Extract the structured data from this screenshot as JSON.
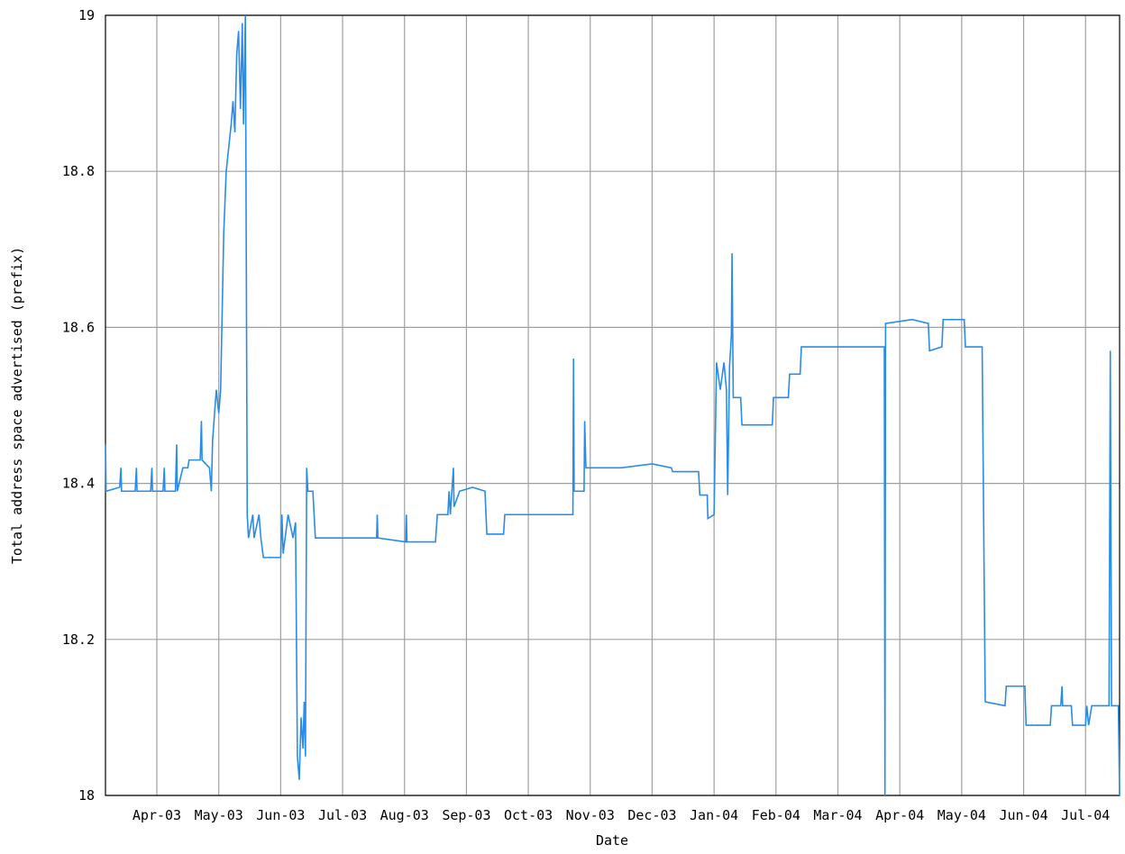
{
  "chart_data": {
    "type": "line",
    "x_label": "Date",
    "y_label": "Total address space advertised (prefix)",
    "color": "#2a8ce8",
    "grid": true,
    "xlim": [
      -0.83,
      15.55
    ],
    "xticks": [
      {
        "value": 0,
        "label": "Apr-03"
      },
      {
        "value": 1,
        "label": "May-03"
      },
      {
        "value": 2,
        "label": "Jun-03"
      },
      {
        "value": 3,
        "label": "Jul-03"
      },
      {
        "value": 4,
        "label": "Aug-03"
      },
      {
        "value": 5,
        "label": "Sep-03"
      },
      {
        "value": 6,
        "label": "Oct-03"
      },
      {
        "value": 7,
        "label": "Nov-03"
      },
      {
        "value": 8,
        "label": "Dec-03"
      },
      {
        "value": 9,
        "label": "Jan-04"
      },
      {
        "value": 10,
        "label": "Feb-04"
      },
      {
        "value": 11,
        "label": "Mar-04"
      },
      {
        "value": 12,
        "label": "Apr-04"
      },
      {
        "value": 13,
        "label": "May-04"
      },
      {
        "value": 14,
        "label": "Jun-04"
      },
      {
        "value": 15,
        "label": "Jul-04"
      }
    ],
    "ylim": [
      18,
      19
    ],
    "yticks": [
      18,
      18.2,
      18.4,
      18.6,
      18.8,
      19
    ],
    "x": [
      -0.83,
      -0.82,
      -0.6,
      -0.58,
      -0.57,
      -0.35,
      -0.33,
      -0.32,
      -0.1,
      -0.08,
      -0.07,
      0.1,
      0.12,
      0.13,
      0.3,
      0.32,
      0.33,
      0.42,
      0.5,
      0.52,
      0.7,
      0.72,
      0.73,
      0.85,
      0.88,
      0.9,
      0.96,
      1.0,
      1.03,
      1.08,
      1.12,
      1.16,
      1.2,
      1.23,
      1.26,
      1.29,
      1.32,
      1.35,
      1.38,
      1.4,
      1.43,
      1.46,
      1.48,
      1.55,
      1.57,
      1.65,
      1.68,
      1.72,
      2.0,
      2.02,
      2.04,
      2.12,
      2.2,
      2.24,
      2.27,
      2.3,
      2.33,
      2.36,
      2.38,
      2.4,
      2.42,
      2.44,
      2.52,
      2.56,
      3.55,
      3.56,
      3.57,
      4.02,
      4.03,
      4.04,
      4.5,
      4.53,
      4.7,
      4.72,
      4.74,
      4.79,
      4.8,
      4.89,
      5.1,
      5.3,
      5.33,
      5.6,
      5.62,
      6.72,
      6.73,
      6.74,
      6.9,
      6.91,
      6.93,
      7.5,
      8.0,
      8.31,
      8.33,
      8.75,
      8.77,
      8.89,
      8.9,
      9.0,
      9.04,
      9.1,
      9.16,
      9.2,
      9.22,
      9.25,
      9.28,
      9.29,
      9.31,
      9.43,
      9.45,
      9.94,
      9.96,
      10.2,
      10.22,
      10.39,
      10.41,
      11.75,
      11.76,
      11.77,
      12.2,
      12.46,
      12.48,
      12.68,
      12.7,
      13.04,
      13.06,
      13.33,
      13.38,
      13.7,
      13.72,
      14.02,
      14.04,
      14.43,
      14.45,
      14.6,
      14.62,
      14.63,
      14.77,
      14.79,
      15.0,
      15.02,
      15.05,
      15.1,
      15.38,
      15.4,
      15.42,
      15.53,
      15.55
    ],
    "values": [
      18.45,
      18.39,
      18.395,
      18.42,
      18.39,
      18.39,
      18.42,
      18.39,
      18.39,
      18.42,
      18.39,
      18.39,
      18.42,
      18.39,
      18.39,
      18.45,
      18.39,
      18.42,
      18.42,
      18.43,
      18.43,
      18.48,
      18.43,
      18.42,
      18.39,
      18.455,
      18.52,
      18.49,
      18.52,
      18.72,
      18.8,
      18.83,
      18.86,
      18.89,
      18.85,
      18.95,
      18.98,
      18.88,
      18.99,
      18.86,
      19.0,
      18.36,
      18.33,
      18.36,
      18.33,
      18.36,
      18.33,
      18.305,
      18.305,
      18.36,
      18.31,
      18.36,
      18.33,
      18.35,
      18.05,
      18.02,
      18.1,
      18.06,
      18.12,
      18.05,
      18.42,
      18.39,
      18.39,
      18.33,
      18.33,
      18.36,
      18.33,
      18.325,
      18.36,
      18.325,
      18.325,
      18.36,
      18.36,
      18.39,
      18.36,
      18.42,
      18.37,
      18.39,
      18.395,
      18.39,
      18.335,
      18.335,
      18.36,
      18.36,
      18.56,
      18.39,
      18.39,
      18.48,
      18.42,
      18.42,
      18.425,
      18.42,
      18.415,
      18.415,
      18.385,
      18.385,
      18.355,
      18.36,
      18.555,
      18.52,
      18.555,
      18.52,
      18.385,
      18.55,
      18.59,
      18.695,
      18.51,
      18.51,
      18.475,
      18.475,
      18.51,
      18.51,
      18.54,
      18.54,
      18.575,
      18.575,
      18.0,
      18.605,
      18.61,
      18.605,
      18.57,
      18.575,
      18.61,
      18.61,
      18.575,
      18.575,
      18.12,
      18.115,
      18.14,
      18.14,
      18.09,
      18.09,
      18.115,
      18.115,
      18.14,
      18.115,
      18.115,
      18.09,
      18.09,
      18.115,
      18.09,
      18.115,
      18.115,
      18.57,
      18.115,
      18.115,
      18.0
    ]
  }
}
